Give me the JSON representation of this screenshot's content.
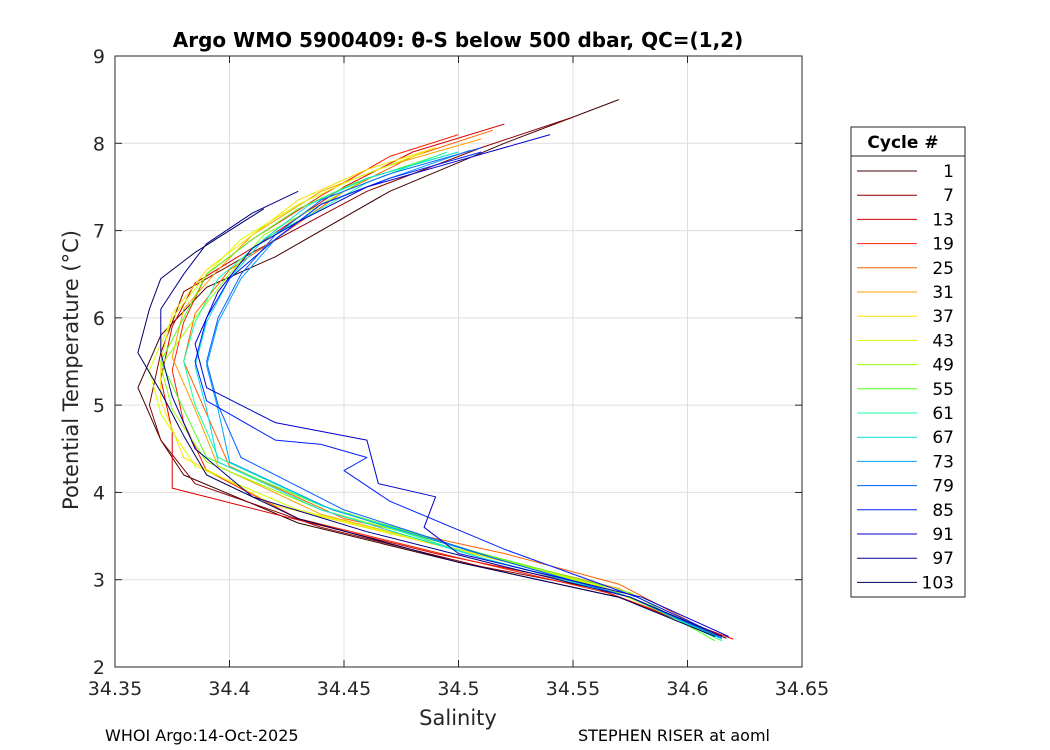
{
  "title": "Argo WMO 5900409: θ-S below 500 dbar,  QC=(1,2)",
  "footer": {
    "left": "WHOI Argo:14-Oct-2025",
    "right": "STEPHEN RISER at aoml"
  },
  "chart_data": {
    "type": "line",
    "title": "Argo WMO 5900409: θ-S below 500 dbar,  QC=(1,2)",
    "xlabel": "Salinity",
    "ylabel": "Potential Temperature (°C)",
    "xlim": [
      34.35,
      34.65
    ],
    "ylim": [
      2,
      9
    ],
    "xticks": [
      34.35,
      34.4,
      34.45,
      34.5,
      34.55,
      34.6,
      34.65
    ],
    "xtick_labels": [
      "34.35",
      "34.4",
      "34.45",
      "34.5",
      "34.55",
      "34.6",
      "34.65"
    ],
    "yticks": [
      2,
      3,
      4,
      5,
      6,
      7,
      8,
      9
    ],
    "ytick_labels": [
      "2",
      "3",
      "4",
      "5",
      "6",
      "7",
      "8",
      "9"
    ],
    "grid": true,
    "legend": {
      "title": "Cycle #",
      "placement": "outside-right",
      "entries": [
        "1",
        "7",
        "13",
        "19",
        "25",
        "31",
        "37",
        "43",
        "49",
        "55",
        "61",
        "67",
        "73",
        "79",
        "85",
        "91",
        "97",
        "103"
      ],
      "colors": [
        "#400000",
        "#8c0000",
        "#d90000",
        "#ff2000",
        "#ff6000",
        "#ffa000",
        "#ffe000",
        "#d6ff00",
        "#96ff00",
        "#56ff20",
        "#16ffa0",
        "#00e0e0",
        "#00a0ff",
        "#0060ff",
        "#0020ff",
        "#0000d0",
        "#00008c",
        "#000060"
      ]
    },
    "series": [
      {
        "name": "1",
        "color": "#400000",
        "values": [
          [
            34.57,
            8.5
          ],
          [
            34.52,
            8.0
          ],
          [
            34.47,
            7.45
          ],
          [
            34.42,
            6.7
          ],
          [
            34.39,
            6.35
          ],
          [
            34.37,
            5.8
          ],
          [
            34.36,
            5.2
          ],
          [
            34.37,
            4.6
          ],
          [
            34.38,
            4.2
          ],
          [
            34.43,
            3.65
          ],
          [
            34.5,
            3.2
          ],
          [
            34.57,
            2.8
          ],
          [
            34.617,
            2.33
          ]
        ]
      },
      {
        "name": "7",
        "color": "#8c0000",
        "values": [
          [
            34.55,
            8.3
          ],
          [
            34.51,
            7.95
          ],
          [
            34.46,
            7.45
          ],
          [
            34.41,
            6.75
          ],
          [
            34.38,
            6.3
          ],
          [
            34.37,
            5.6
          ],
          [
            34.365,
            5.0
          ],
          [
            34.37,
            4.6
          ],
          [
            34.385,
            4.1
          ],
          [
            34.44,
            3.6
          ],
          [
            34.51,
            3.15
          ],
          [
            34.56,
            2.9
          ],
          [
            34.615,
            2.35
          ]
        ]
      },
      {
        "name": "13",
        "color": "#d90000",
        "values": [
          [
            34.52,
            8.22
          ],
          [
            34.48,
            7.9
          ],
          [
            34.45,
            7.5
          ],
          [
            34.41,
            6.8
          ],
          [
            34.385,
            6.4
          ],
          [
            34.375,
            5.9
          ],
          [
            34.37,
            5.3
          ],
          [
            34.375,
            4.7
          ],
          [
            34.375,
            4.05
          ],
          [
            34.42,
            3.75
          ],
          [
            34.49,
            3.3
          ],
          [
            34.555,
            2.95
          ],
          [
            34.62,
            2.32
          ]
        ]
      },
      {
        "name": "19",
        "color": "#ff2000",
        "values": [
          [
            34.5,
            8.1
          ],
          [
            34.47,
            7.85
          ],
          [
            34.44,
            7.4
          ],
          [
            34.41,
            6.9
          ],
          [
            34.39,
            6.5
          ],
          [
            34.38,
            5.95
          ],
          [
            34.375,
            5.4
          ],
          [
            34.38,
            4.8
          ],
          [
            34.39,
            4.25
          ],
          [
            34.43,
            3.7
          ],
          [
            34.5,
            3.25
          ],
          [
            34.565,
            2.85
          ],
          [
            34.615,
            2.36
          ]
        ]
      },
      {
        "name": "25",
        "color": "#ff6000",
        "values": [
          [
            34.515,
            8.15
          ],
          [
            34.48,
            7.85
          ],
          [
            34.45,
            7.45
          ],
          [
            34.42,
            6.9
          ],
          [
            34.4,
            6.55
          ],
          [
            34.385,
            6.05
          ],
          [
            34.38,
            5.5
          ],
          [
            34.39,
            4.9
          ],
          [
            34.4,
            4.3
          ],
          [
            34.45,
            3.7
          ],
          [
            34.52,
            3.3
          ],
          [
            34.57,
            2.95
          ],
          [
            34.61,
            2.4
          ]
        ]
      },
      {
        "name": "31",
        "color": "#ffa000",
        "values": [
          [
            34.51,
            8.05
          ],
          [
            34.47,
            7.75
          ],
          [
            34.44,
            7.45
          ],
          [
            34.41,
            6.95
          ],
          [
            34.395,
            6.55
          ],
          [
            34.38,
            6.1
          ],
          [
            34.375,
            5.55
          ],
          [
            34.385,
            4.95
          ],
          [
            34.395,
            4.3
          ],
          [
            34.44,
            3.75
          ],
          [
            34.5,
            3.35
          ],
          [
            34.57,
            2.9
          ],
          [
            34.612,
            2.38
          ]
        ]
      },
      {
        "name": "37",
        "color": "#ffe000",
        "values": [
          [
            34.49,
            7.95
          ],
          [
            34.46,
            7.7
          ],
          [
            34.43,
            7.35
          ],
          [
            34.41,
            6.95
          ],
          [
            34.39,
            6.55
          ],
          [
            34.375,
            6.05
          ],
          [
            34.37,
            5.5
          ],
          [
            34.37,
            5.05
          ],
          [
            34.38,
            4.4
          ],
          [
            34.42,
            3.85
          ],
          [
            34.49,
            3.4
          ],
          [
            34.56,
            2.95
          ],
          [
            34.61,
            2.4
          ]
        ]
      },
      {
        "name": "43",
        "color": "#d6ff00",
        "values": [
          [
            34.485,
            7.9
          ],
          [
            34.455,
            7.6
          ],
          [
            34.43,
            7.3
          ],
          [
            34.405,
            6.9
          ],
          [
            34.39,
            6.5
          ],
          [
            34.375,
            6.0
          ],
          [
            34.365,
            5.4
          ],
          [
            34.37,
            4.9
          ],
          [
            34.385,
            4.3
          ],
          [
            34.43,
            3.8
          ],
          [
            34.5,
            3.35
          ],
          [
            34.565,
            2.9
          ],
          [
            34.612,
            2.38
          ]
        ]
      },
      {
        "name": "49",
        "color": "#96ff00",
        "values": [
          [
            34.5,
            7.9
          ],
          [
            34.46,
            7.6
          ],
          [
            34.44,
            7.3
          ],
          [
            34.415,
            6.95
          ],
          [
            34.4,
            6.5
          ],
          [
            34.385,
            6.0
          ],
          [
            34.37,
            5.45
          ],
          [
            34.375,
            4.95
          ],
          [
            34.39,
            4.35
          ],
          [
            34.44,
            3.8
          ],
          [
            34.51,
            3.3
          ],
          [
            34.57,
            2.85
          ],
          [
            34.612,
            2.35
          ]
        ]
      },
      {
        "name": "55",
        "color": "#56ff20",
        "values": [
          [
            34.49,
            7.85
          ],
          [
            34.455,
            7.55
          ],
          [
            34.43,
            7.25
          ],
          [
            34.41,
            6.9
          ],
          [
            34.39,
            6.5
          ],
          [
            34.38,
            6.0
          ],
          [
            34.37,
            5.5
          ],
          [
            34.38,
            4.95
          ],
          [
            34.39,
            4.4
          ],
          [
            34.44,
            3.85
          ],
          [
            34.51,
            3.3
          ],
          [
            34.575,
            2.85
          ],
          [
            34.612,
            2.3
          ]
        ]
      },
      {
        "name": "61",
        "color": "#16ffa0",
        "values": [
          [
            34.495,
            7.9
          ],
          [
            34.46,
            7.55
          ],
          [
            34.44,
            7.25
          ],
          [
            34.415,
            6.9
          ],
          [
            34.395,
            6.45
          ],
          [
            34.385,
            5.95
          ],
          [
            34.38,
            5.5
          ],
          [
            34.385,
            5.0
          ],
          [
            34.395,
            4.4
          ],
          [
            34.44,
            3.85
          ],
          [
            34.51,
            3.25
          ],
          [
            34.575,
            2.8
          ],
          [
            34.615,
            2.3
          ]
        ]
      },
      {
        "name": "67",
        "color": "#00e0e0",
        "values": [
          [
            34.5,
            7.9
          ],
          [
            34.46,
            7.6
          ],
          [
            34.435,
            7.3
          ],
          [
            34.415,
            6.9
          ],
          [
            34.4,
            6.45
          ],
          [
            34.39,
            5.95
          ],
          [
            34.385,
            5.45
          ],
          [
            34.39,
            4.95
          ],
          [
            34.395,
            4.35
          ],
          [
            34.44,
            3.8
          ],
          [
            34.51,
            3.25
          ],
          [
            34.575,
            2.8
          ],
          [
            34.615,
            2.32
          ]
        ]
      },
      {
        "name": "73",
        "color": "#00a0ff",
        "values": [
          [
            34.505,
            7.92
          ],
          [
            34.47,
            7.6
          ],
          [
            34.44,
            7.3
          ],
          [
            34.42,
            6.9
          ],
          [
            34.405,
            6.45
          ],
          [
            34.395,
            5.95
          ],
          [
            34.39,
            5.45
          ],
          [
            34.395,
            4.95
          ],
          [
            34.4,
            4.35
          ],
          [
            34.445,
            3.8
          ],
          [
            34.515,
            3.25
          ],
          [
            34.575,
            2.8
          ],
          [
            34.615,
            2.33
          ]
        ]
      },
      {
        "name": "79",
        "color": "#0060ff",
        "values": [
          [
            34.51,
            7.95
          ],
          [
            34.47,
            7.65
          ],
          [
            34.44,
            7.35
          ],
          [
            34.42,
            6.95
          ],
          [
            34.405,
            6.5
          ],
          [
            34.395,
            6.0
          ],
          [
            34.39,
            5.5
          ],
          [
            34.395,
            5.0
          ],
          [
            34.405,
            4.4
          ],
          [
            34.45,
            3.8
          ],
          [
            34.515,
            3.25
          ],
          [
            34.575,
            2.8
          ],
          [
            34.615,
            2.33
          ]
        ]
      },
      {
        "name": "85",
        "color": "#0020ff",
        "values": [
          [
            34.51,
            7.9
          ],
          [
            34.47,
            7.6
          ],
          [
            34.44,
            7.3
          ],
          [
            34.42,
            6.9
          ],
          [
            34.4,
            6.45
          ],
          [
            34.39,
            6.0
          ],
          [
            34.385,
            5.5
          ],
          [
            34.39,
            5.05
          ],
          [
            34.42,
            4.6
          ],
          [
            34.44,
            4.55
          ],
          [
            34.46,
            4.4
          ],
          [
            34.45,
            4.25
          ],
          [
            34.47,
            3.9
          ],
          [
            34.52,
            3.35
          ],
          [
            34.578,
            2.8
          ],
          [
            34.615,
            2.35
          ]
        ]
      },
      {
        "name": "91",
        "color": "#0000d0",
        "values": [
          [
            34.54,
            8.1
          ],
          [
            34.5,
            7.8
          ],
          [
            34.46,
            7.5
          ],
          [
            34.43,
            7.1
          ],
          [
            34.41,
            6.8
          ],
          [
            34.395,
            6.3
          ],
          [
            34.385,
            5.7
          ],
          [
            34.39,
            5.2
          ],
          [
            34.42,
            4.8
          ],
          [
            34.46,
            4.6
          ],
          [
            34.465,
            4.1
          ],
          [
            34.49,
            3.95
          ],
          [
            34.485,
            3.6
          ],
          [
            34.5,
            3.3
          ],
          [
            34.58,
            2.8
          ],
          [
            34.618,
            2.35
          ]
        ]
      },
      {
        "name": "97",
        "color": "#00008c",
        "values": [
          [
            34.43,
            7.45
          ],
          [
            34.41,
            7.2
          ],
          [
            34.39,
            6.85
          ],
          [
            34.38,
            6.5
          ],
          [
            34.37,
            6.1
          ],
          [
            34.37,
            5.6
          ],
          [
            34.375,
            5.1
          ],
          [
            34.385,
            4.5
          ],
          [
            34.41,
            3.95
          ],
          [
            34.46,
            3.55
          ],
          [
            34.52,
            3.15
          ],
          [
            34.575,
            2.8
          ],
          [
            34.615,
            2.35
          ]
        ]
      },
      {
        "name": "103",
        "color": "#000060",
        "values": [
          [
            34.415,
            7.25
          ],
          [
            34.4,
            7.0
          ],
          [
            34.385,
            6.75
          ],
          [
            34.37,
            6.45
          ],
          [
            34.365,
            6.1
          ],
          [
            34.36,
            5.6
          ],
          [
            34.37,
            5.15
          ],
          [
            34.38,
            4.65
          ],
          [
            34.39,
            4.2
          ],
          [
            34.43,
            3.7
          ],
          [
            34.5,
            3.2
          ],
          [
            34.57,
            2.8
          ],
          [
            34.612,
            2.35
          ]
        ]
      }
    ]
  }
}
